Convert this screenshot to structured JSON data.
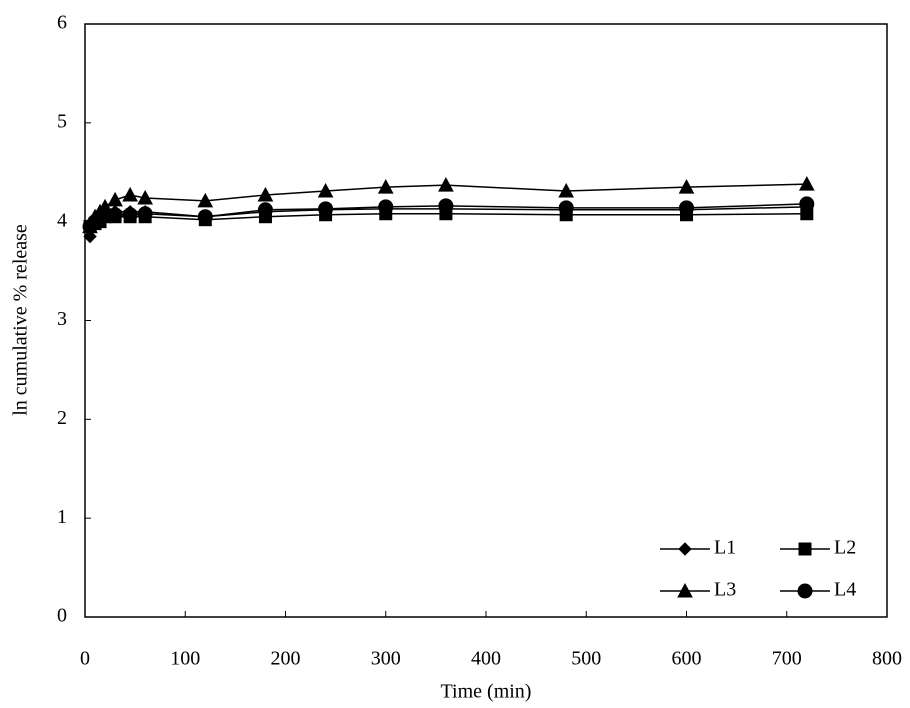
{
  "chart_data": {
    "type": "line",
    "x_label": "Time (min)",
    "y_label": "ln cumulative % release",
    "x": [
      5,
      10,
      15,
      20,
      30,
      45,
      60,
      120,
      180,
      240,
      300,
      360,
      480,
      600,
      720
    ],
    "series": [
      {
        "name": "L1",
        "color": "#000000",
        "marker": "diamond",
        "values": [
          3.85,
          4.0,
          4.05,
          4.1,
          4.1,
          4.1,
          4.1,
          4.05,
          4.1,
          4.12,
          4.13,
          4.13,
          4.12,
          4.12,
          4.15
        ]
      },
      {
        "name": "L2",
        "color": "#000000",
        "marker": "square",
        "values": [
          3.95,
          3.98,
          4.0,
          4.05,
          4.05,
          4.05,
          4.05,
          4.02,
          4.05,
          4.07,
          4.08,
          4.08,
          4.07,
          4.07,
          4.08
        ]
      },
      {
        "name": "L3",
        "color": "#000000",
        "marker": "triangle",
        "values": [
          3.95,
          4.05,
          4.1,
          4.15,
          4.22,
          4.27,
          4.24,
          4.21,
          4.27,
          4.31,
          4.35,
          4.37,
          4.31,
          4.35,
          4.38
        ]
      },
      {
        "name": "L4",
        "color": "#000000",
        "marker": "circle",
        "values": [
          3.95,
          4.0,
          4.05,
          4.08,
          4.07,
          4.07,
          4.08,
          4.05,
          4.12,
          4.13,
          4.15,
          4.16,
          4.14,
          4.14,
          4.18
        ]
      }
    ],
    "xlim": [
      0,
      800
    ],
    "xticks": [
      0,
      100,
      200,
      300,
      400,
      500,
      600,
      700,
      800
    ],
    "ylim": [
      0,
      6
    ],
    "yticks": [
      0,
      1,
      2,
      3,
      4,
      5,
      6
    ],
    "grid": false,
    "legend_position": "lower right"
  }
}
